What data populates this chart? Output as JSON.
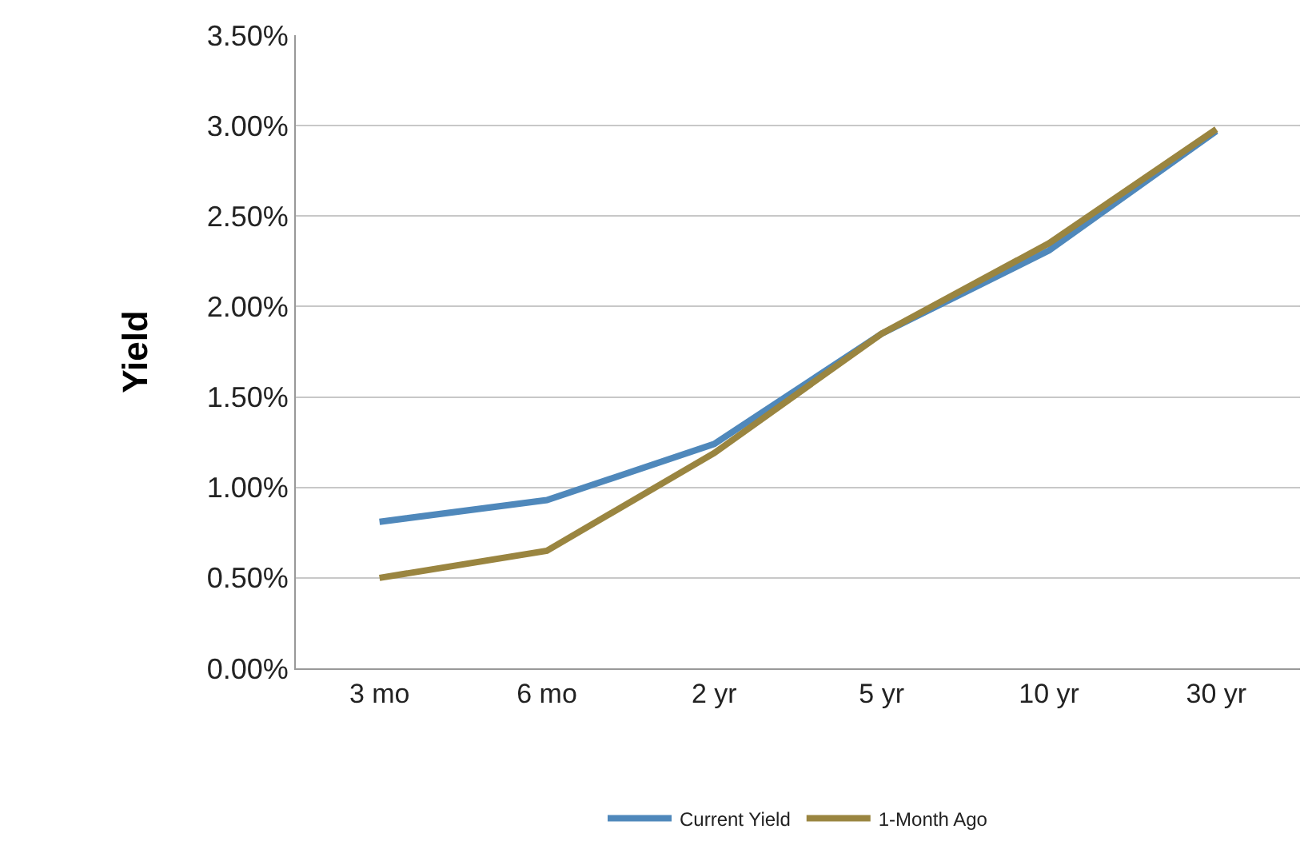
{
  "chart_data": {
    "type": "line",
    "ylabel": "Yield",
    "categories": [
      "3 mo",
      "6 mo",
      "2 yr",
      "5 yr",
      "10 yr",
      "30 yr"
    ],
    "series": [
      {
        "name": "Current Yield",
        "color": "#4f88bb",
        "values": [
          0.81,
          0.93,
          1.24,
          1.85,
          2.31,
          2.97
        ]
      },
      {
        "name": "1-Month Ago",
        "color": "#9a8540",
        "values": [
          0.5,
          0.65,
          1.19,
          1.85,
          2.35,
          2.98
        ]
      }
    ],
    "ylim": [
      0,
      3.5
    ],
    "yticks": [
      {
        "value": 0,
        "label": "0.00%"
      },
      {
        "value": 0.5,
        "label": "0.50%"
      },
      {
        "value": 1,
        "label": "1.00%"
      },
      {
        "value": 1.5,
        "label": "1.50%"
      },
      {
        "value": 2,
        "label": "2.00%"
      },
      {
        "value": 2.5,
        "label": "2.50%"
      },
      {
        "value": 3,
        "label": "3.00%"
      },
      {
        "value": 3.5,
        "label": "3.50%"
      }
    ],
    "grid": "y",
    "legend": "bottom",
    "marker": "none",
    "line_style": "solid"
  }
}
